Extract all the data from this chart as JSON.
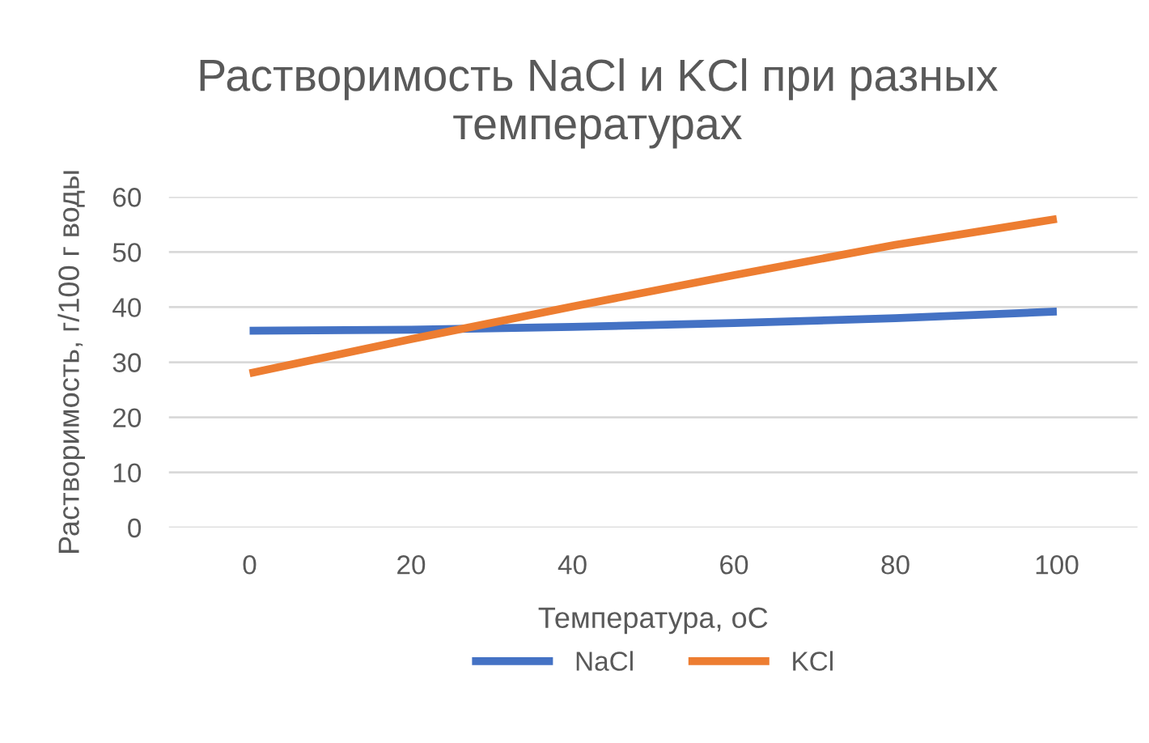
{
  "chart_data": {
    "type": "line",
    "title": "Растворимость NaCl и KCl при разных температурах",
    "xlabel": "Температура, оС",
    "ylabel": "Растворимость, г/100 г воды",
    "x": [
      0,
      20,
      40,
      60,
      80,
      100
    ],
    "series": [
      {
        "name": "NaCl",
        "color": "#4472c4",
        "values": [
          35.7,
          35.9,
          36.4,
          37.1,
          38.0,
          39.2
        ]
      },
      {
        "name": "KCl",
        "color": "#ed7d31",
        "values": [
          28.0,
          34.2,
          40.1,
          45.8,
          51.3,
          56.0
        ]
      }
    ],
    "xlim": [
      -10,
      110
    ],
    "xticks": [
      0,
      20,
      40,
      60,
      80,
      100
    ],
    "ylim": [
      0,
      60
    ],
    "yticks": [
      0,
      10,
      20,
      30,
      40,
      50,
      60
    ],
    "grid": "y",
    "legend": "bottom",
    "marker": "none",
    "line_style": "solid"
  }
}
